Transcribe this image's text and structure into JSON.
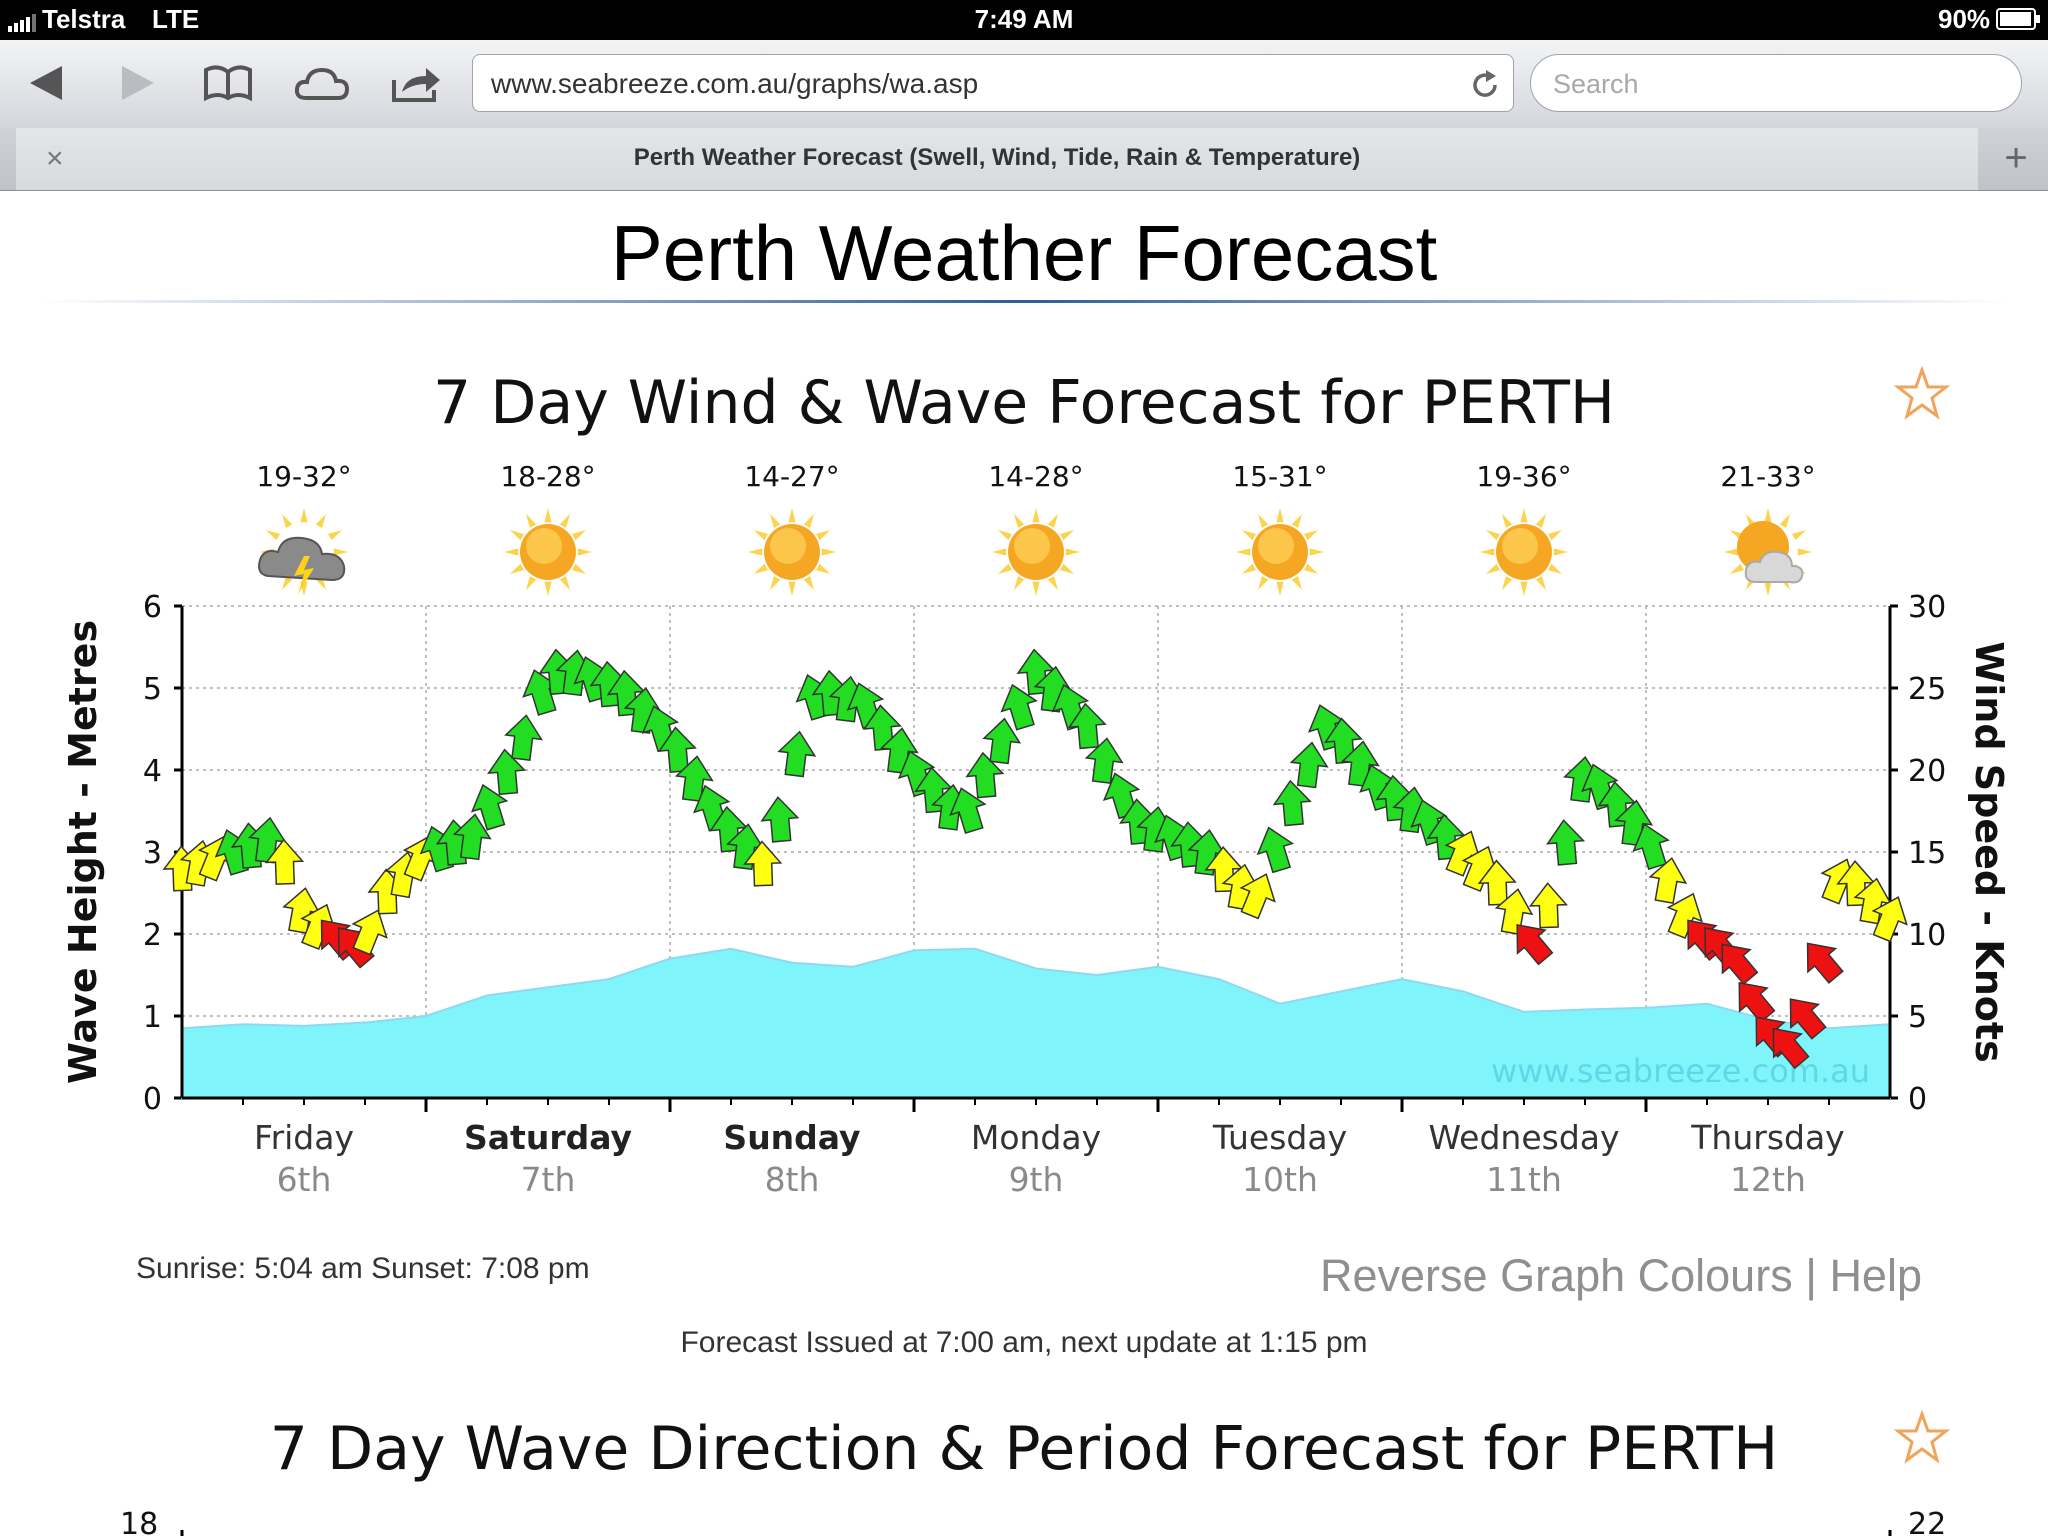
{
  "status_bar": {
    "carrier": "Telstra",
    "network": "LTE",
    "time": "7:49 AM",
    "battery": "90%"
  },
  "browser": {
    "url": "www.seabreeze.com.au/graphs/wa.asp",
    "search_placeholder": "Search",
    "tab_title": "Perth Weather Forecast (Swell, Wind, Tide, Rain & Temperature)",
    "tab_close": "×",
    "new_tab": "+"
  },
  "page": {
    "title": "Perth Weather Forecast",
    "sunrise_sunset": "Sunrise: 5:04 am  Sunset: 7:08 pm",
    "reverse_link": "Reverse Graph Colours",
    "separator": "|",
    "help_link": "Help",
    "issued": "Forecast Issued at 7:00 am, next update at 1:15 pm"
  },
  "chart_data": [
    {
      "type": "area",
      "title": "7 Day Wind & Wave Forecast for PERTH",
      "ylabel": "Wave Height - Metres",
      "y2label": "Wind Speed - Knots",
      "ylim": [
        0,
        6
      ],
      "y2lim": [
        0,
        30
      ],
      "yticks": [
        "0",
        "1",
        "2",
        "3",
        "4",
        "5",
        "6"
      ],
      "y2ticks": [
        "0",
        "5",
        "10",
        "15",
        "20",
        "25",
        "30"
      ],
      "grid": true,
      "watermark": "www.seabreeze.com.au",
      "days": [
        {
          "name": "Friday",
          "date": "6th",
          "temp": "19-32°",
          "icon": "storm-cloud-icon",
          "bold": false
        },
        {
          "name": "Saturday",
          "date": "7th",
          "temp": "18-28°",
          "icon": "sun-icon",
          "bold": true
        },
        {
          "name": "Sunday",
          "date": "8th",
          "temp": "14-27°",
          "icon": "sun-icon",
          "bold": true
        },
        {
          "name": "Monday",
          "date": "9th",
          "temp": "14-28°",
          "icon": "sun-icon",
          "bold": false
        },
        {
          "name": "Tuesday",
          "date": "10th",
          "temp": "15-31°",
          "icon": "sun-icon",
          "bold": false
        },
        {
          "name": "Wednesday",
          "date": "11th",
          "temp": "19-36°",
          "icon": "sun-icon",
          "bold": false
        },
        {
          "name": "Thursday",
          "date": "12th",
          "temp": "21-33°",
          "icon": "partly-cloudy-icon",
          "bold": false
        }
      ],
      "x_range_days": [
        0,
        7
      ],
      "series": [
        {
          "name": "Wave height",
          "units": "m",
          "x": [
            0,
            0.25,
            0.5,
            0.75,
            1.0,
            1.25,
            1.5,
            1.75,
            2.0,
            2.25,
            2.5,
            2.75,
            3.0,
            3.25,
            3.5,
            3.75,
            4.0,
            4.25,
            4.5,
            4.75,
            5.0,
            5.25,
            5.5,
            5.75,
            6.0,
            6.25,
            6.5,
            6.75,
            7.0
          ],
          "values": [
            0.85,
            0.9,
            0.88,
            0.92,
            1.0,
            1.25,
            1.35,
            1.45,
            1.7,
            1.82,
            1.65,
            1.6,
            1.8,
            1.82,
            1.58,
            1.5,
            1.6,
            1.45,
            1.15,
            1.3,
            1.45,
            1.3,
            1.05,
            1.08,
            1.1,
            1.15,
            0.95,
            0.85,
            0.9
          ],
          "color": "#7ff5fb"
        },
        {
          "name": "Wind speed",
          "units": "knots",
          "x": [
            0,
            0.2,
            0.4,
            0.45,
            0.6,
            0.75,
            0.8,
            1.0,
            1.2,
            1.4,
            1.5,
            1.6,
            1.8,
            2.0,
            2.2,
            2.4,
            2.5,
            2.6,
            2.8,
            3.0,
            3.2,
            3.5,
            3.7,
            3.9,
            4.2,
            4.4,
            4.55,
            4.7,
            4.9,
            5.1,
            5.4,
            5.55,
            5.75,
            6.0,
            6.2,
            6.35,
            6.5,
            6.6,
            6.7,
            6.8,
            7.0
          ],
          "values": [
            14,
            15,
            16,
            12,
            10,
            9,
            12,
            15,
            16,
            22,
            26,
            26,
            25,
            22,
            17,
            14,
            20,
            25,
            24,
            20,
            17,
            26,
            23,
            17,
            15,
            12,
            18,
            23,
            19,
            17,
            13,
            9,
            20,
            16,
            10,
            9,
            4,
            3,
            7,
            14,
            11
          ],
          "colors_by_speed": {
            "below_10": "#ee1111",
            "10_to_15": "#ffff10",
            "above_15": "#22dd22"
          }
        }
      ]
    },
    {
      "type": "line",
      "title": "7 Day Wave Direction & Period Forecast for PERTH",
      "yticks_visible": [
        "18"
      ],
      "y2ticks_visible": [
        "22"
      ]
    }
  ],
  "icons": {
    "back": "back-arrow-icon",
    "forward": "forward-arrow-icon",
    "bookmarks": "book-icon",
    "icloud": "cloud-icon",
    "share": "share-icon",
    "reload": "reload-icon",
    "favourite": "star-icon"
  }
}
